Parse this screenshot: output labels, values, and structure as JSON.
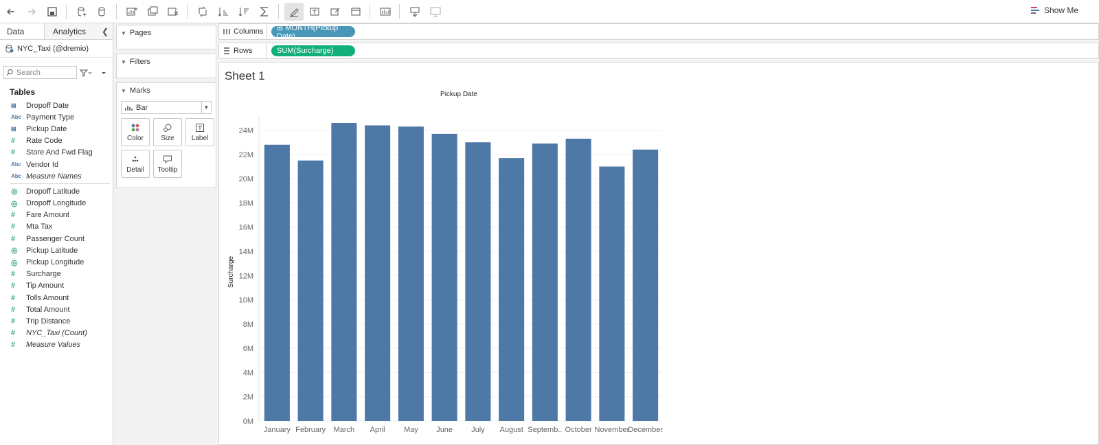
{
  "toolbar": {
    "show_me_label": "Show Me"
  },
  "data_pane": {
    "tabs": [
      "Data",
      "Analytics"
    ],
    "datasource": "NYC_Taxi (@dremio)",
    "search_placeholder": "Search",
    "tables_heading": "Tables",
    "dimensions": [
      {
        "icon": "calendar",
        "label": "Dropoff Date"
      },
      {
        "icon": "Abc",
        "label": "Payment Type"
      },
      {
        "icon": "calendar",
        "label": "Pickup Date"
      },
      {
        "icon": "#",
        "label": "Rate Code"
      },
      {
        "icon": "#",
        "label": "Store And Fwd Flag"
      },
      {
        "icon": "Abc",
        "label": "Vendor Id"
      },
      {
        "icon": "Abc",
        "label": "Measure Names",
        "italic": true
      }
    ],
    "measures": [
      {
        "icon": "globe",
        "label": "Dropoff Latitude"
      },
      {
        "icon": "globe",
        "label": "Dropoff Longitude"
      },
      {
        "icon": "#",
        "label": "Fare Amount"
      },
      {
        "icon": "#",
        "label": "Mta Tax"
      },
      {
        "icon": "#",
        "label": "Passenger Count"
      },
      {
        "icon": "globe",
        "label": "Pickup Latitude"
      },
      {
        "icon": "globe",
        "label": "Pickup Longitude"
      },
      {
        "icon": "#",
        "label": "Surcharge"
      },
      {
        "icon": "#",
        "label": "Tip Amount"
      },
      {
        "icon": "#",
        "label": "Tolls Amount"
      },
      {
        "icon": "#",
        "label": "Total Amount"
      },
      {
        "icon": "#",
        "label": "Trip Distance"
      },
      {
        "icon": "#",
        "label": "NYC_Taxi (Count)",
        "italic": true
      },
      {
        "icon": "#",
        "label": "Measure Values",
        "italic": true
      }
    ]
  },
  "cards": {
    "pages": "Pages",
    "filters": "Filters",
    "marks": "Marks",
    "mark_type": "Bar",
    "mark_buttons": [
      "Color",
      "Size",
      "Label",
      "Detail",
      "Tooltip"
    ]
  },
  "shelves": {
    "columns_label": "Columns",
    "columns_pill": "⊞ MONTH(Pickup Date)",
    "rows_label": "Rows",
    "rows_pill": "SUM(Surcharge)"
  },
  "sheet": {
    "title": "Sheet 1"
  },
  "colors": {
    "bar": "#4e79a7",
    "dimension_pill": "#4997b8",
    "measure_pill": "#11b07a"
  },
  "chart_data": {
    "type": "bar",
    "title": "Pickup Date",
    "xlabel": "",
    "ylabel": "Surcharge",
    "categories": [
      "January",
      "February",
      "March",
      "April",
      "May",
      "June",
      "July",
      "August",
      "Septemb..",
      "October",
      "November",
      "December"
    ],
    "values": [
      22.8,
      21.5,
      24.6,
      24.4,
      24.3,
      23.7,
      23.0,
      21.7,
      22.9,
      23.3,
      21.0,
      22.4
    ],
    "value_unit": "M",
    "ylim": [
      0,
      24.6
    ],
    "yticks": [
      "0M",
      "2M",
      "4M",
      "6M",
      "8M",
      "10M",
      "12M",
      "14M",
      "16M",
      "18M",
      "20M",
      "22M",
      "24M"
    ],
    "grid": true
  }
}
